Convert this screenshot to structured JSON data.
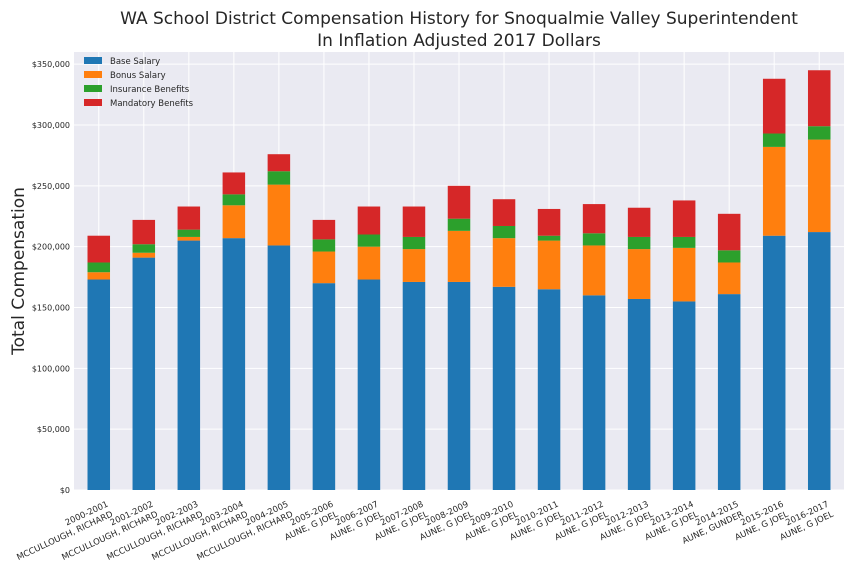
{
  "chart_data": {
    "type": "bar",
    "stacked": true,
    "title": "WA School District Compensation History for Snoqualmie Valley Superintendent",
    "subtitle": "In Inflation Adjusted 2017 Dollars",
    "xlabel": "",
    "ylabel": "Total Compensation",
    "ylim": [
      0,
      360000
    ],
    "yticks": [
      0,
      50000,
      100000,
      150000,
      200000,
      250000,
      300000,
      350000
    ],
    "ytick_labels": [
      "$0",
      "$50,000",
      "$100,000",
      "$150,000",
      "$200,000",
      "$250,000",
      "$300,000",
      "$350,000"
    ],
    "grid": true,
    "legend_position": "top-left",
    "categories": [
      {
        "year": "2000-2001",
        "name": "MCCULLOUGH, RICHARD"
      },
      {
        "year": "2001-2002",
        "name": "MCCULLOUGH, RICHARD"
      },
      {
        "year": "2002-2003",
        "name": "MCCULLOUGH, RICHARD"
      },
      {
        "year": "2003-2004",
        "name": "MCCULLOUGH, RICHARD"
      },
      {
        "year": "2004-2005",
        "name": "MCCULLOUGH, RICHARD"
      },
      {
        "year": "2005-2006",
        "name": "AUNE, G JOEL"
      },
      {
        "year": "2006-2007",
        "name": "AUNE, G JOEL"
      },
      {
        "year": "2007-2008",
        "name": "AUNE, G JOEL"
      },
      {
        "year": "2008-2009",
        "name": "AUNE, G JOEL"
      },
      {
        "year": "2009-2010",
        "name": "AUNE, G JOEL"
      },
      {
        "year": "2010-2011",
        "name": "AUNE, G JOEL"
      },
      {
        "year": "2011-2012",
        "name": "AUNE, G JOEL"
      },
      {
        "year": "2012-2013",
        "name": "AUNE, G JOEL"
      },
      {
        "year": "2013-2014",
        "name": "AUNE, G JOEL"
      },
      {
        "year": "2014-2015",
        "name": "AUNE, GUNDER"
      },
      {
        "year": "2015-2016",
        "name": "AUNE, G JOEL"
      },
      {
        "year": "2016-2017",
        "name": "AUNE, G JOEL"
      }
    ],
    "series": [
      {
        "name": "Base Salary",
        "color": "#1f77b4",
        "values": [
          173000,
          191000,
          205000,
          207000,
          201000,
          170000,
          173000,
          171000,
          171000,
          167000,
          165000,
          160000,
          157000,
          155000,
          161000,
          209000,
          212000
        ]
      },
      {
        "name": "Bonus Salary",
        "color": "#ff7f0e",
        "values": [
          6000,
          4000,
          3000,
          27000,
          50000,
          26000,
          27000,
          27000,
          42000,
          40000,
          40000,
          41000,
          41000,
          44000,
          26000,
          73000,
          76000
        ]
      },
      {
        "name": "Insurance Benefits",
        "color": "#2ca02c",
        "values": [
          8000,
          7000,
          6000,
          9000,
          11000,
          10000,
          10000,
          10000,
          10000,
          10000,
          4000,
          10000,
          10000,
          9000,
          10000,
          11000,
          11000
        ]
      },
      {
        "name": "Mandatory Benefits",
        "color": "#d62728",
        "values": [
          22000,
          20000,
          19000,
          18000,
          14000,
          16000,
          23000,
          25000,
          27000,
          22000,
          22000,
          24000,
          24000,
          30000,
          30000,
          45000,
          46000
        ]
      }
    ]
  }
}
